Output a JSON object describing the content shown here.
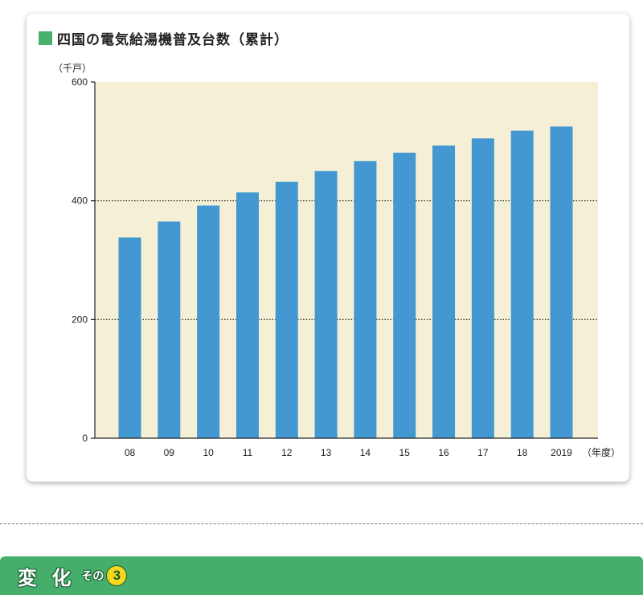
{
  "chart_data": {
    "type": "bar",
    "title": "四国の電気給湯機普及台数（累計）",
    "ylabel": "（千戸）",
    "xlabel": "（年度）",
    "categories": [
      "08",
      "09",
      "10",
      "11",
      "12",
      "13",
      "14",
      "15",
      "16",
      "17",
      "18",
      "2019"
    ],
    "values": [
      338,
      365,
      392,
      414,
      432,
      450,
      467,
      481,
      493,
      505,
      518,
      525
    ],
    "ylim": [
      0,
      600
    ],
    "yticks": [
      0,
      200,
      400,
      600
    ],
    "grid": "dotted horizontal lines at 200 and 400",
    "colors": {
      "bar": "#4398d2",
      "plot_bg": "#f5f0d5",
      "title_marker": "#47b06b"
    }
  },
  "section": {
    "main": "変 化",
    "sub": "その",
    "number": "3"
  }
}
